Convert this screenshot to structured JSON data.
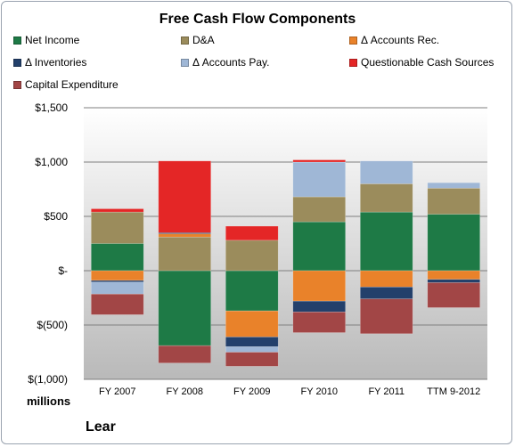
{
  "chart_data": {
    "type": "bar",
    "stacked": true,
    "title": "Free Cash Flow Components",
    "units_label": "millions",
    "company": "Lear",
    "categories": [
      "FY 2007",
      "FY 2008",
      "FY 2009",
      "FY 2010",
      "FY 2011",
      "TTM 9-2012"
    ],
    "ylim": [
      -1000,
      1500
    ],
    "yticks": [
      {
        "value": 1500,
        "label": "$1,500"
      },
      {
        "value": 1000,
        "label": "$1,000"
      },
      {
        "value": 500,
        "label": "$500"
      },
      {
        "value": 0,
        "label": "$-"
      },
      {
        "value": -500,
        "label": "$(500)"
      },
      {
        "value": -1000,
        "label": "$(1,000)"
      }
    ],
    "grid": true,
    "legend_position": "top",
    "series": [
      {
        "name": "Net Income",
        "color": "#1e7a46",
        "values": [
          250,
          -690,
          -370,
          450,
          540,
          520
        ]
      },
      {
        "name": "D&A",
        "color": "#9b8c5c",
        "values": [
          290,
          310,
          280,
          230,
          260,
          240
        ]
      },
      {
        "name": "Δ Accounts Rec.",
        "color": "#e9822a",
        "values": [
          -90,
          30,
          -240,
          -280,
          -150,
          -80
        ]
      },
      {
        "name": "Δ Inventories",
        "color": "#23406b",
        "values": [
          -15,
          10,
          -90,
          -100,
          -110,
          -30
        ]
      },
      {
        "name": "Δ Accounts Pay.",
        "color": "#9fb7d6",
        "values": [
          -110,
          0,
          -50,
          320,
          210,
          50
        ]
      },
      {
        "name": "Questionable Cash Sources",
        "color": "#e42626",
        "values": [
          30,
          660,
          130,
          20,
          0,
          0
        ]
      },
      {
        "name": "Capital Expenditure",
        "color": "#a24646",
        "values": [
          -190,
          -160,
          -130,
          -190,
          -320,
          -230
        ]
      }
    ]
  }
}
